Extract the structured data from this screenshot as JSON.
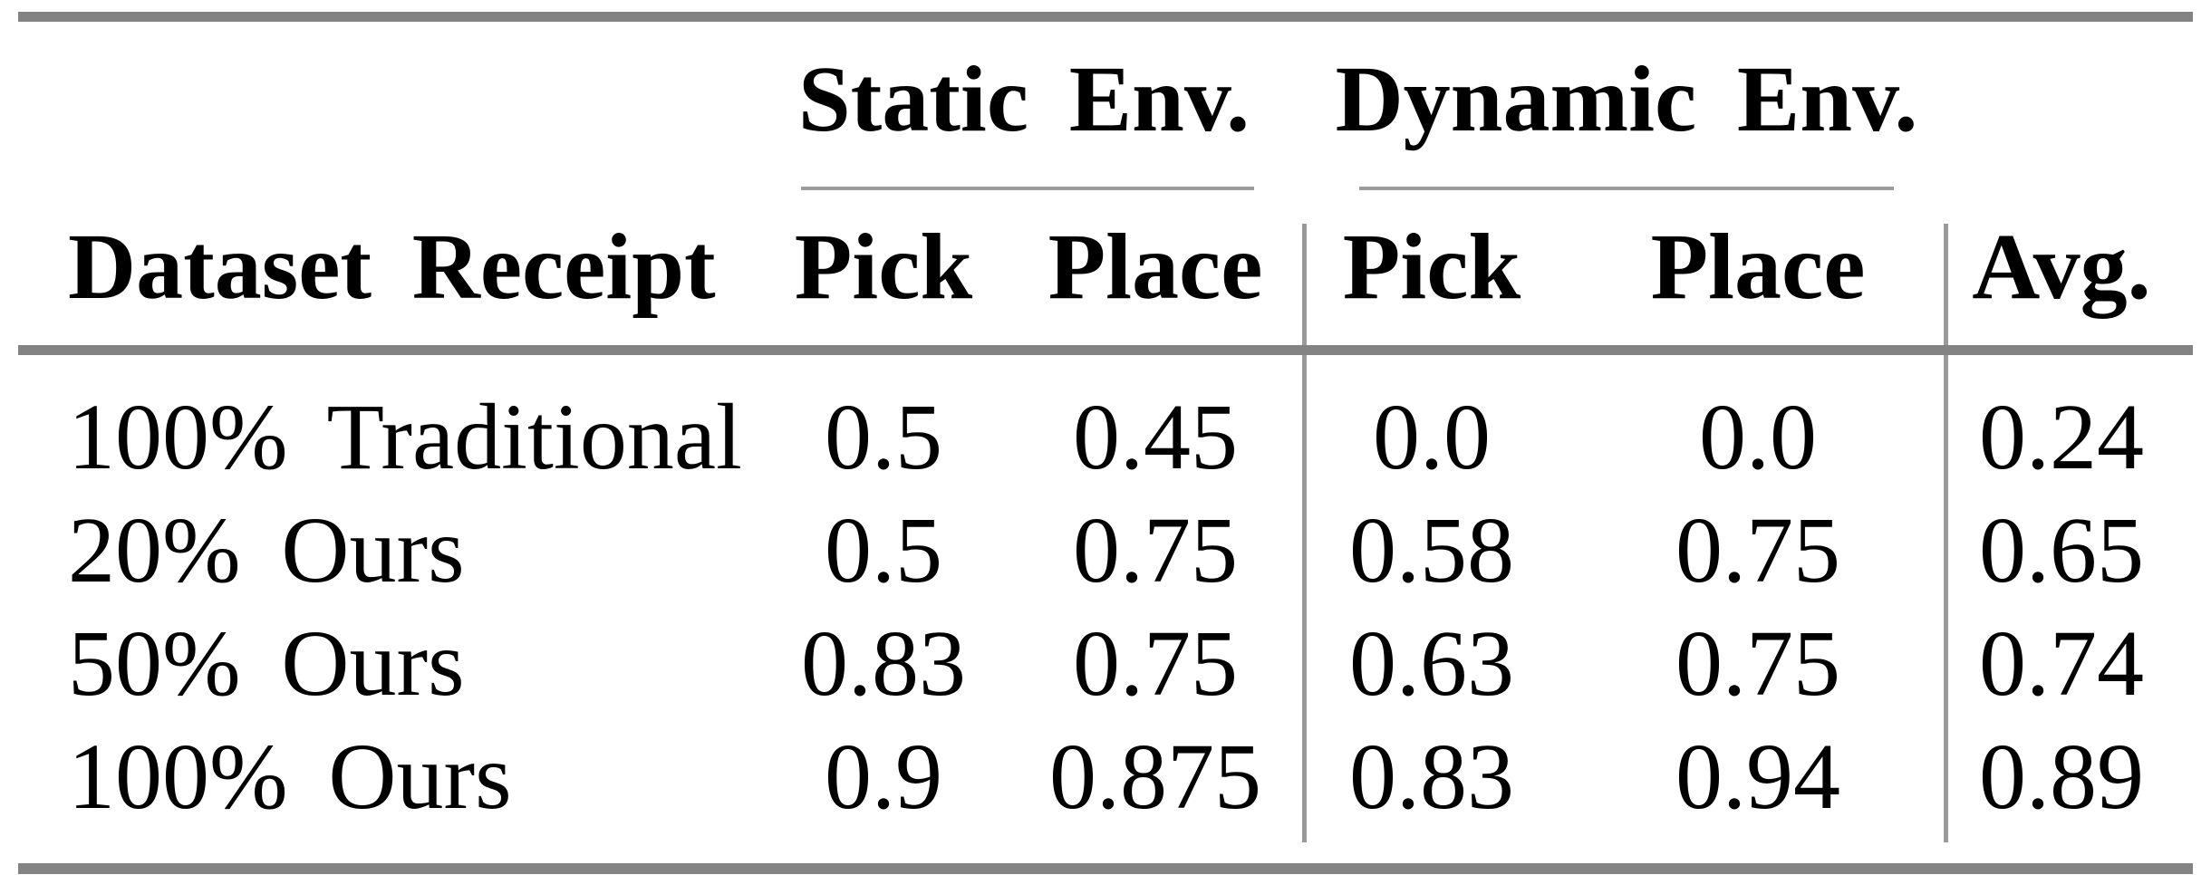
{
  "colors": {
    "background": "#ffffff",
    "text": "#000000",
    "rule_heavy": "#838383",
    "rule_light": "#9a9a9a"
  },
  "table": {
    "group_headers": [
      {
        "label": "Static Env."
      },
      {
        "label": "Dynamic Env."
      }
    ],
    "header": {
      "dataset": "Dataset Receipt",
      "static_pick": "Pick",
      "static_place": "Place",
      "dynamic_pick": "Pick",
      "dynamic_place": "Place",
      "avg": "Avg."
    },
    "rows": [
      {
        "dataset": "100% Traditional",
        "static_pick": "0.5",
        "static_place": "0.45",
        "dynamic_pick": "0.0",
        "dynamic_place": "0.0",
        "avg": "0.24"
      },
      {
        "dataset": "20% Ours",
        "static_pick": "0.5",
        "static_place": "0.75",
        "dynamic_pick": "0.58",
        "dynamic_place": "0.75",
        "avg": "0.65"
      },
      {
        "dataset": "50% Ours",
        "static_pick": "0.83",
        "static_place": "0.75",
        "dynamic_pick": "0.63",
        "dynamic_place": "0.75",
        "avg": "0.74"
      },
      {
        "dataset": "100% Ours",
        "static_pick": "0.9",
        "static_place": "0.875",
        "dynamic_pick": "0.83",
        "dynamic_place": "0.94",
        "avg": "0.89"
      }
    ]
  },
  "chart_data": {
    "type": "table",
    "columns": [
      "Dataset Receipt",
      "Static Env. Pick",
      "Static Env. Place",
      "Dynamic Env. Pick",
      "Dynamic Env. Place",
      "Avg."
    ],
    "rows": [
      [
        "100% Traditional",
        0.5,
        0.45,
        0.0,
        0.0,
        0.24
      ],
      [
        "20% Ours",
        0.5,
        0.75,
        0.58,
        0.75,
        0.65
      ],
      [
        "50% Ours",
        0.83,
        0.75,
        0.63,
        0.75,
        0.74
      ],
      [
        "100% Ours",
        0.9,
        0.875,
        0.83,
        0.94,
        0.89
      ]
    ]
  }
}
